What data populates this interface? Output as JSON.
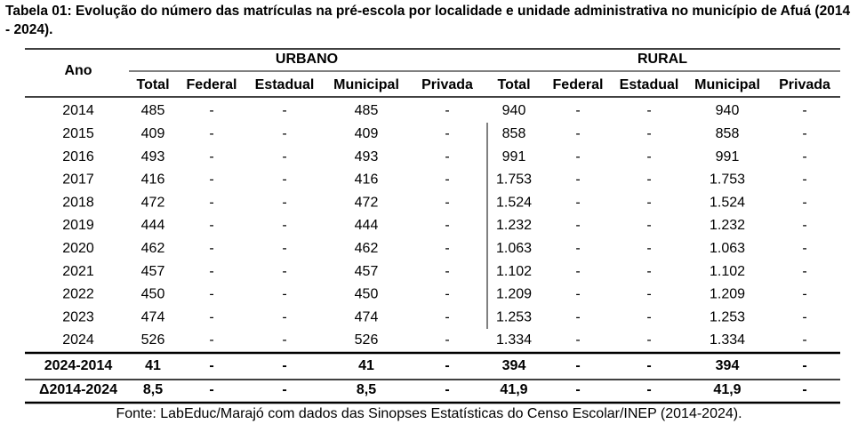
{
  "title": "Tabela 01: Evolução do número das matrículas na pré-escola por localidade e unidade administrativa no município de Afuá (2014 - 2024).",
  "table": {
    "year_header": "Ano",
    "groups": [
      "URBANO",
      "RURAL"
    ],
    "columns": [
      "Total",
      "Federal",
      "Estadual",
      "Municipal",
      "Privada",
      "Total",
      "Federal",
      "Estadual",
      "Municipal",
      "Privada"
    ],
    "rows": [
      [
        "2014",
        "485",
        "-",
        "-",
        "485",
        "-",
        "940",
        "-",
        "-",
        "940",
        "-"
      ],
      [
        "2015",
        "409",
        "-",
        "-",
        "409",
        "-",
        "858",
        "-",
        "-",
        "858",
        "-"
      ],
      [
        "2016",
        "493",
        "-",
        "-",
        "493",
        "-",
        "991",
        "-",
        "-",
        "991",
        "-"
      ],
      [
        "2017",
        "416",
        "-",
        "-",
        "416",
        "-",
        "1.753",
        "-",
        "-",
        "1.753",
        "-"
      ],
      [
        "2018",
        "472",
        "-",
        "-",
        "472",
        "-",
        "1.524",
        "-",
        "-",
        "1.524",
        "-"
      ],
      [
        "2019",
        "444",
        "-",
        "-",
        "444",
        "-",
        "1.232",
        "-",
        "-",
        "1.232",
        "-"
      ],
      [
        "2020",
        "462",
        "-",
        "-",
        "462",
        "-",
        "1.063",
        "-",
        "-",
        "1.063",
        "-"
      ],
      [
        "2021",
        "457",
        "-",
        "-",
        "457",
        "-",
        "1.102",
        "-",
        "-",
        "1.102",
        "-"
      ],
      [
        "2022",
        "450",
        "-",
        "-",
        "450",
        "-",
        "1.209",
        "-",
        "-",
        "1.209",
        "-"
      ],
      [
        "2023",
        "474",
        "-",
        "-",
        "474",
        "-",
        "1.253",
        "-",
        "-",
        "1.253",
        "-"
      ],
      [
        "2024",
        "526",
        "-",
        "-",
        "526",
        "-",
        "1.334",
        "-",
        "-",
        "1.334",
        "-"
      ]
    ],
    "summary_rows": [
      [
        "2024-2014",
        "41",
        "-",
        "-",
        "41",
        "-",
        "394",
        "-",
        "-",
        "394",
        "-"
      ],
      [
        "Δ2014-2024",
        "8,5",
        "-",
        "-",
        "8,5",
        "-",
        "41,9",
        "-",
        "-",
        "41,9",
        "-"
      ]
    ]
  },
  "source": "Fonte: LabEduc/Marajó com dados das Sinopses Estatísticas do Censo Escolar/INEP (2014-2024)."
}
